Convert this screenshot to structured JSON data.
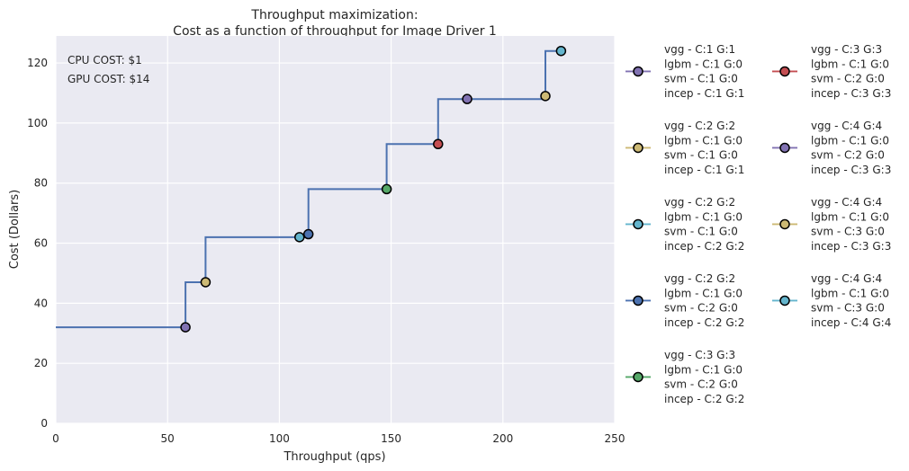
{
  "chart_data": {
    "type": "line",
    "title_lines": [
      "Throughput maximization:",
      "Cost as a function of throughput for Image Driver 1"
    ],
    "xlabel": "Throughput (qps)",
    "ylabel": "Cost (Dollars)",
    "xlim": [
      0,
      250
    ],
    "ylim": [
      0,
      129
    ],
    "xticks": [
      0,
      50,
      100,
      150,
      200,
      250
    ],
    "yticks": [
      0,
      20,
      40,
      60,
      80,
      100,
      120
    ],
    "grid": true,
    "annotations": [
      "CPU COST: $1",
      "GPU COST: $14"
    ],
    "step_line": {
      "color": "#4c72b0",
      "points": [
        [
          0,
          32
        ],
        [
          58,
          32
        ],
        [
          58,
          47
        ],
        [
          67,
          47
        ],
        [
          67,
          62
        ],
        [
          113,
          62
        ],
        [
          113,
          78
        ],
        [
          148,
          78
        ],
        [
          148,
          93
        ],
        [
          171,
          93
        ],
        [
          171,
          108
        ],
        [
          219,
          108
        ],
        [
          219,
          124
        ],
        [
          226,
          124
        ]
      ]
    },
    "series": [
      {
        "label": [
          "vgg - C:1 G:1",
          "lgbm - C:1 G:0",
          "svm - C:1 G:0",
          "incep - C:1 G:1"
        ],
        "color": "#8172b2",
        "x": 58,
        "y": 32
      },
      {
        "label": [
          "vgg - C:2 G:2",
          "lgbm - C:1 G:0",
          "svm - C:1 G:0",
          "incep - C:1 G:1"
        ],
        "color": "#ccb974",
        "x": 67,
        "y": 47
      },
      {
        "label": [
          "vgg - C:2 G:2",
          "lgbm - C:1 G:0",
          "svm - C:1 G:0",
          "incep - C:2 G:2"
        ],
        "color": "#64b5cd",
        "x": 109,
        "y": 62
      },
      {
        "label": [
          "vgg - C:2 G:2",
          "lgbm - C:1 G:0",
          "svm - C:2 G:0",
          "incep - C:2 G:2"
        ],
        "color": "#4c72b0",
        "x": 113,
        "y": 63
      },
      {
        "label": [
          "vgg - C:3 G:3",
          "lgbm - C:1 G:0",
          "svm - C:2 G:0",
          "incep - C:2 G:2"
        ],
        "color": "#55a868",
        "x": 148,
        "y": 78
      },
      {
        "label": [
          "vgg - C:3 G:3",
          "lgbm - C:1 G:0",
          "svm - C:2 G:0",
          "incep - C:3 G:3"
        ],
        "color": "#c44e52",
        "x": 171,
        "y": 93
      },
      {
        "label": [
          "vgg - C:4 G:4",
          "lgbm - C:1 G:0",
          "svm - C:2 G:0",
          "incep - C:3 G:3"
        ],
        "color": "#8172b2",
        "x": 184,
        "y": 108
      },
      {
        "label": [
          "vgg - C:4 G:4",
          "lgbm - C:1 G:0",
          "svm - C:3 G:0",
          "incep - C:3 G:3"
        ],
        "color": "#ccb974",
        "x": 219,
        "y": 109
      },
      {
        "label": [
          "vgg - C:4 G:4",
          "lgbm - C:1 G:0",
          "svm - C:3 G:0",
          "incep - C:4 G:4"
        ],
        "color": "#64b5cd",
        "x": 226,
        "y": 124
      }
    ]
  }
}
